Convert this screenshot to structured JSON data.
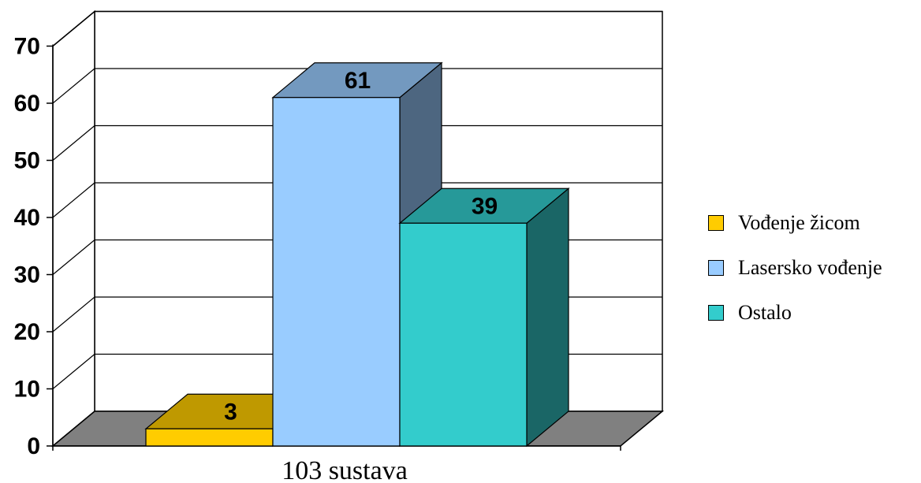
{
  "chart_data": {
    "type": "bar",
    "categories": [
      "103 sustava"
    ],
    "series": [
      {
        "name": "Vođenje žicom",
        "values": [
          3
        ],
        "color": "#FFCC00",
        "top_color": "#BF9900",
        "side_color": "#806600"
      },
      {
        "name": "Lasersko vođenje",
        "values": [
          61
        ],
        "color": "#99CCFF",
        "top_color": "#7399BF",
        "side_color": "#4D6680"
      },
      {
        "name": "Ostalo",
        "values": [
          39
        ],
        "color": "#33CCCC",
        "top_color": "#269999",
        "side_color": "#1A6666"
      }
    ],
    "ylim": [
      0,
      70
    ],
    "yticks": [
      "0",
      "10",
      "20",
      "30",
      "40",
      "50",
      "60",
      "70"
    ],
    "grid": true,
    "legend_position": "right",
    "style": "3d",
    "floor_color": "#808080"
  }
}
